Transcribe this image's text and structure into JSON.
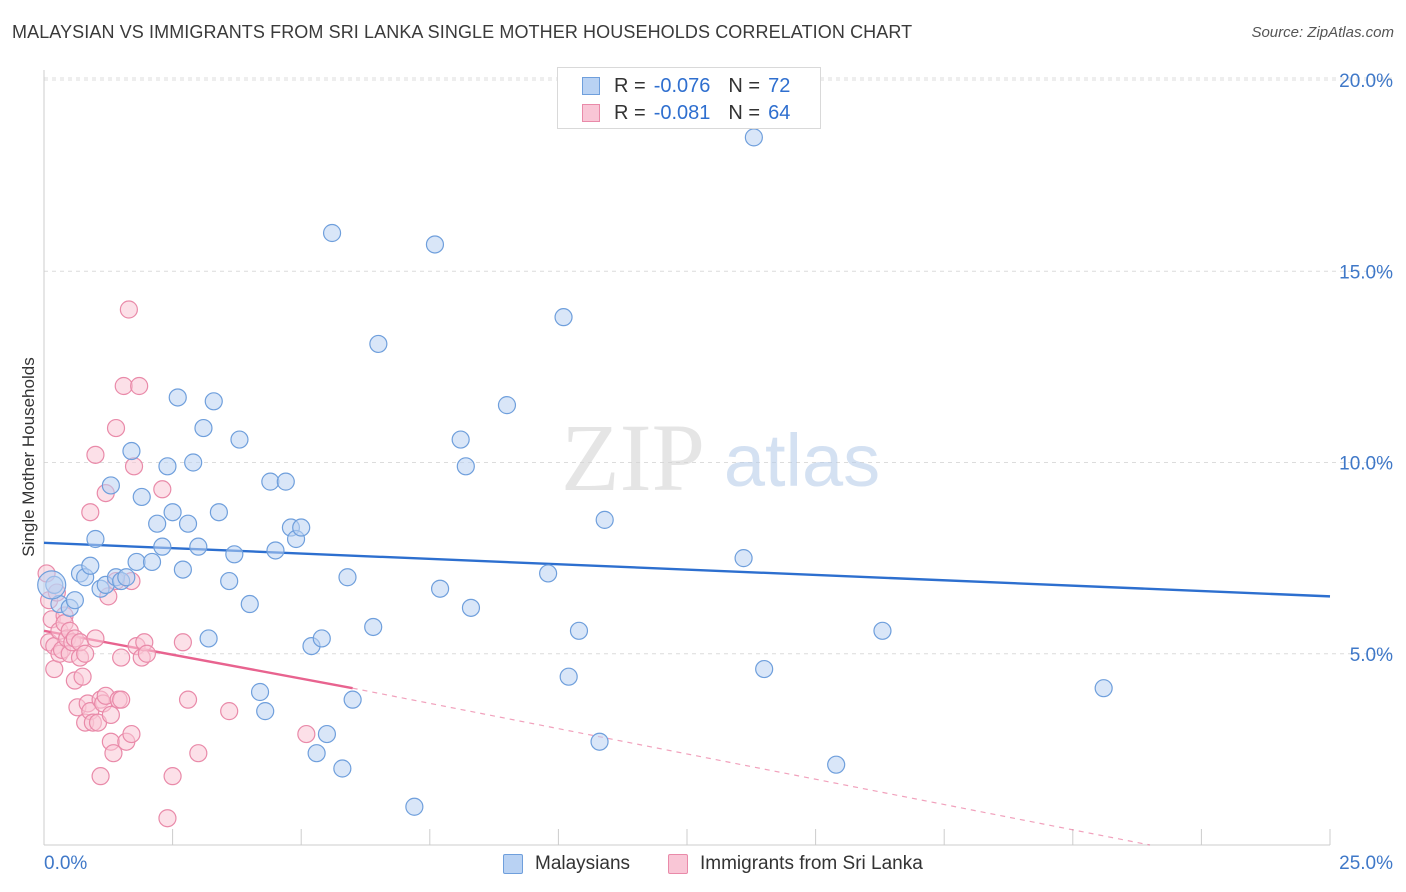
{
  "header": {
    "title": "MALAYSIAN VS IMMIGRANTS FROM SRI LANKA SINGLE MOTHER HOUSEHOLDS CORRELATION CHART",
    "source": "Source: ZipAtlas.com"
  },
  "watermark": {
    "zip": "ZIP",
    "atlas": "atlas"
  },
  "legend_top": {
    "rows": [
      {
        "r_label": "R =",
        "r_value": "-0.076",
        "n_label": "N =",
        "n_value": "72"
      },
      {
        "r_label": "R =",
        "r_value": "-0.081",
        "n_label": "N =",
        "n_value": "64"
      }
    ]
  },
  "legend_bottom": {
    "items": [
      "Malaysians",
      "Immigrants from Sri Lanka"
    ]
  },
  "colors": {
    "blue_fill": "#b9d2f3",
    "blue_stroke": "#6f9fdc",
    "blue_line": "#2d6fcf",
    "pink_fill": "#f9c6d6",
    "pink_stroke": "#e98aa9",
    "pink_line": "#e8638f",
    "tick_label": "#3f78c8",
    "grid": "#dcdcdc"
  },
  "chart_data": {
    "type": "scatter",
    "title": "MALAYSIAN VS IMMIGRANTS FROM SRI LANKA SINGLE MOTHER HOUSEHOLDS CORRELATION CHART",
    "xlabel": "",
    "ylabel": "Single Mother Households",
    "xlim": [
      0,
      25
    ],
    "ylim": [
      0,
      20
    ],
    "x_tick_labels": [
      "0.0%",
      "25.0%"
    ],
    "y_ticks": [
      5,
      10,
      15,
      20
    ],
    "y_tick_labels": [
      "5.0%",
      "10.0%",
      "15.0%",
      "20.0%"
    ],
    "grid": true,
    "legend_position": "top-center",
    "series": [
      {
        "name": "Malaysians",
        "color": "#6f9fdc",
        "r": -0.076,
        "n": 72,
        "trend": {
          "x": [
            0,
            25
          ],
          "y": [
            7.9,
            6.5
          ],
          "dashed_extension": false
        },
        "points": [
          [
            0.2,
            6.8
          ],
          [
            0.3,
            6.3
          ],
          [
            0.5,
            6.2
          ],
          [
            0.6,
            6.4
          ],
          [
            0.7,
            7.1
          ],
          [
            0.8,
            7.0
          ],
          [
            0.9,
            7.3
          ],
          [
            1.0,
            8.0
          ],
          [
            1.1,
            6.7
          ],
          [
            1.2,
            6.8
          ],
          [
            1.3,
            9.4
          ],
          [
            1.4,
            7.0
          ],
          [
            1.5,
            6.9
          ],
          [
            1.6,
            7.0
          ],
          [
            1.7,
            10.3
          ],
          [
            1.8,
            7.4
          ],
          [
            1.9,
            9.1
          ],
          [
            2.1,
            7.4
          ],
          [
            2.2,
            8.4
          ],
          [
            2.3,
            7.8
          ],
          [
            2.4,
            9.9
          ],
          [
            2.5,
            8.7
          ],
          [
            2.6,
            11.7
          ],
          [
            2.7,
            7.2
          ],
          [
            2.8,
            8.4
          ],
          [
            2.9,
            10.0
          ],
          [
            3.0,
            7.8
          ],
          [
            3.1,
            10.9
          ],
          [
            3.2,
            5.4
          ],
          [
            3.3,
            11.6
          ],
          [
            3.4,
            8.7
          ],
          [
            3.6,
            6.9
          ],
          [
            3.7,
            7.6
          ],
          [
            3.8,
            10.6
          ],
          [
            4.0,
            6.3
          ],
          [
            4.2,
            4.0
          ],
          [
            4.3,
            3.5
          ],
          [
            4.4,
            9.5
          ],
          [
            4.5,
            7.7
          ],
          [
            4.7,
            9.5
          ],
          [
            4.8,
            8.3
          ],
          [
            4.9,
            8.0
          ],
          [
            5.0,
            8.3
          ],
          [
            5.2,
            5.2
          ],
          [
            5.3,
            2.4
          ],
          [
            5.4,
            5.4
          ],
          [
            5.5,
            2.9
          ],
          [
            5.6,
            16.0
          ],
          [
            5.8,
            2.0
          ],
          [
            5.9,
            7.0
          ],
          [
            6.0,
            3.8
          ],
          [
            6.4,
            5.7
          ],
          [
            6.5,
            13.1
          ],
          [
            7.2,
            1.0
          ],
          [
            7.6,
            15.7
          ],
          [
            7.7,
            6.7
          ],
          [
            8.1,
            10.6
          ],
          [
            8.2,
            9.9
          ],
          [
            8.3,
            6.2
          ],
          [
            9.0,
            11.5
          ],
          [
            9.8,
            7.1
          ],
          [
            10.1,
            13.8
          ],
          [
            10.2,
            4.4
          ],
          [
            10.4,
            5.6
          ],
          [
            10.8,
            2.7
          ],
          [
            10.9,
            8.5
          ],
          [
            13.6,
            7.5
          ],
          [
            13.8,
            18.5
          ],
          [
            14.0,
            4.6
          ],
          [
            15.4,
            2.1
          ],
          [
            16.3,
            5.6
          ],
          [
            20.6,
            4.1
          ]
        ]
      },
      {
        "name": "Immigrants from Sri Lanka",
        "color": "#e98aa9",
        "r": -0.081,
        "n": 64,
        "trend": {
          "x": [
            0,
            6
          ],
          "y": [
            5.6,
            4.1
          ],
          "dashed_extension": true,
          "dashed_to": [
            21.5,
            0
          ]
        },
        "points": [
          [
            0.05,
            7.1
          ],
          [
            0.1,
            6.4
          ],
          [
            0.1,
            5.3
          ],
          [
            0.15,
            5.9
          ],
          [
            0.2,
            5.2
          ],
          [
            0.2,
            4.6
          ],
          [
            0.25,
            6.6
          ],
          [
            0.3,
            5.0
          ],
          [
            0.3,
            5.6
          ],
          [
            0.35,
            5.1
          ],
          [
            0.4,
            6.0
          ],
          [
            0.4,
            5.8
          ],
          [
            0.45,
            5.4
          ],
          [
            0.5,
            5.6
          ],
          [
            0.5,
            5.0
          ],
          [
            0.55,
            5.3
          ],
          [
            0.6,
            4.3
          ],
          [
            0.6,
            5.4
          ],
          [
            0.65,
            3.6
          ],
          [
            0.7,
            4.9
          ],
          [
            0.7,
            5.3
          ],
          [
            0.75,
            4.4
          ],
          [
            0.8,
            3.2
          ],
          [
            0.8,
            5.0
          ],
          [
            0.85,
            3.7
          ],
          [
            0.9,
            3.5
          ],
          [
            0.9,
            8.7
          ],
          [
            0.95,
            3.2
          ],
          [
            1.0,
            10.2
          ],
          [
            1.0,
            5.4
          ],
          [
            1.05,
            3.2
          ],
          [
            1.1,
            1.8
          ],
          [
            1.1,
            3.8
          ],
          [
            1.15,
            3.7
          ],
          [
            1.2,
            9.2
          ],
          [
            1.2,
            3.9
          ],
          [
            1.25,
            6.5
          ],
          [
            1.3,
            2.7
          ],
          [
            1.3,
            3.4
          ],
          [
            1.35,
            2.4
          ],
          [
            1.4,
            10.9
          ],
          [
            1.4,
            6.9
          ],
          [
            1.45,
            3.8
          ],
          [
            1.5,
            4.9
          ],
          [
            1.5,
            3.8
          ],
          [
            1.55,
            12.0
          ],
          [
            1.6,
            2.7
          ],
          [
            1.65,
            14.0
          ],
          [
            1.7,
            2.9
          ],
          [
            1.7,
            6.9
          ],
          [
            1.75,
            9.9
          ],
          [
            1.8,
            5.2
          ],
          [
            1.85,
            12.0
          ],
          [
            1.9,
            4.9
          ],
          [
            1.95,
            5.3
          ],
          [
            2.0,
            5.0
          ],
          [
            2.3,
            9.3
          ],
          [
            2.4,
            0.7
          ],
          [
            2.5,
            1.8
          ],
          [
            2.7,
            5.3
          ],
          [
            2.8,
            3.8
          ],
          [
            3.0,
            2.4
          ],
          [
            3.6,
            3.5
          ],
          [
            5.1,
            2.9
          ]
        ]
      }
    ]
  }
}
